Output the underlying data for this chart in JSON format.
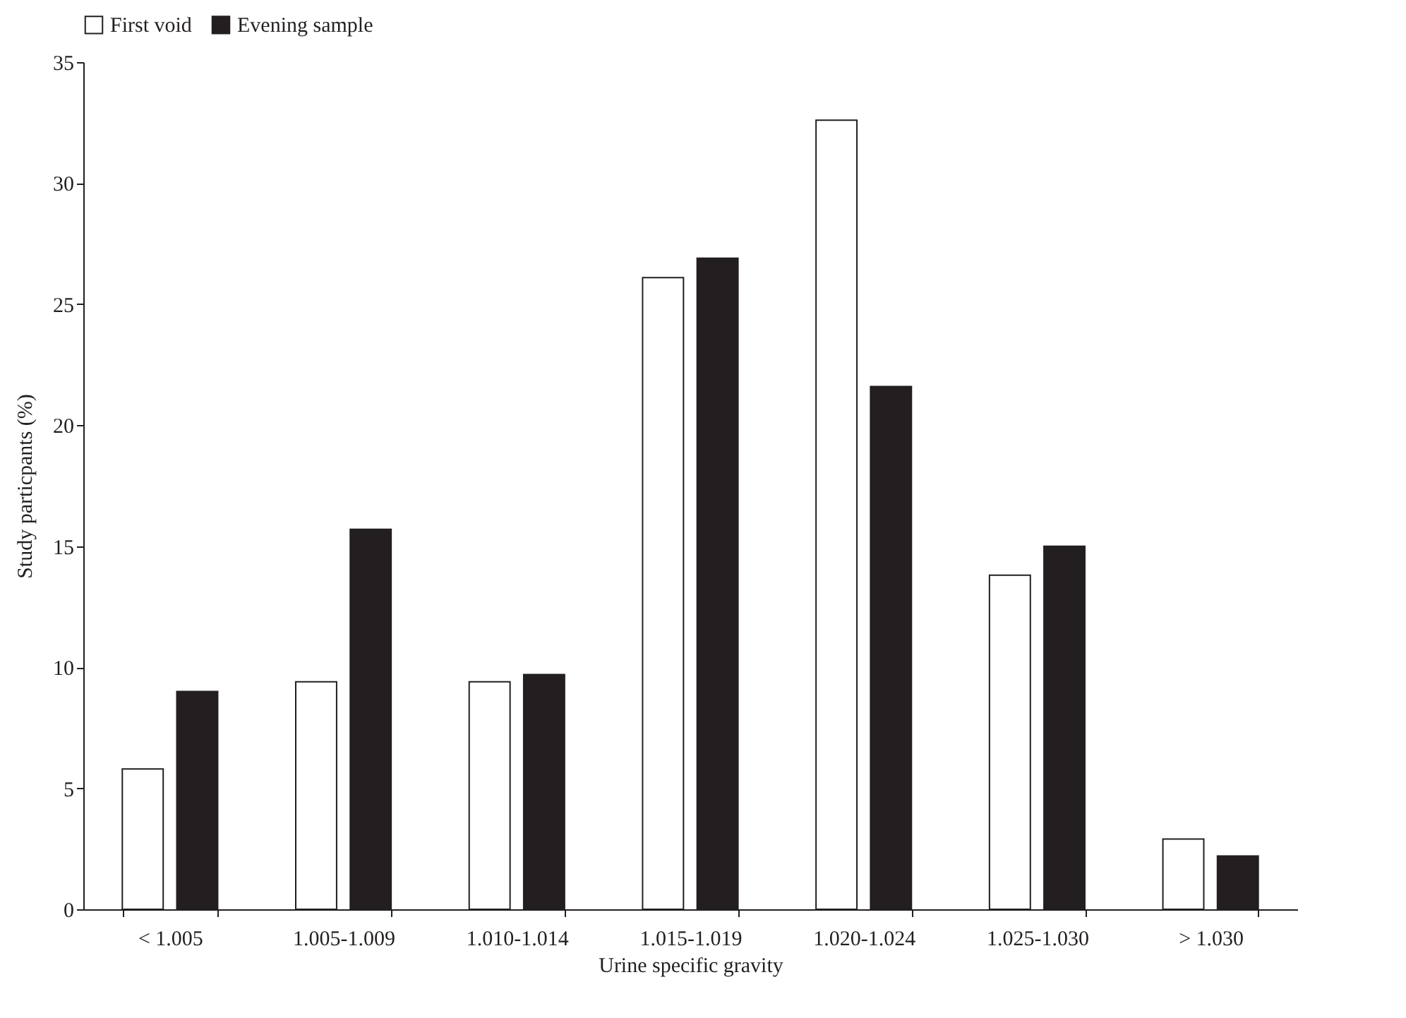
{
  "chart_data": {
    "type": "bar",
    "xlabel": "Urine specific gravity",
    "ylabel": "Study particpants (%)",
    "categories": [
      "< 1.005",
      "1.005-1.009",
      "1.010-1.014",
      "1.015-1.019",
      "1.020-1.024",
      "1.025-1.030",
      "> 1.030"
    ],
    "series": [
      {
        "name": "First void",
        "color": "#ffffff",
        "values": [
          5.8,
          9.4,
          9.4,
          26.1,
          32.6,
          13.8,
          2.9
        ]
      },
      {
        "name": "Evening sample",
        "color": "#231f20",
        "values": [
          9.0,
          15.7,
          9.7,
          26.9,
          21.6,
          15.0,
          2.2
        ]
      }
    ],
    "ylim": [
      0,
      35
    ],
    "yticks": [
      0,
      5,
      10,
      15,
      20,
      25,
      30,
      35
    ],
    "grid": false,
    "legend": "top"
  }
}
